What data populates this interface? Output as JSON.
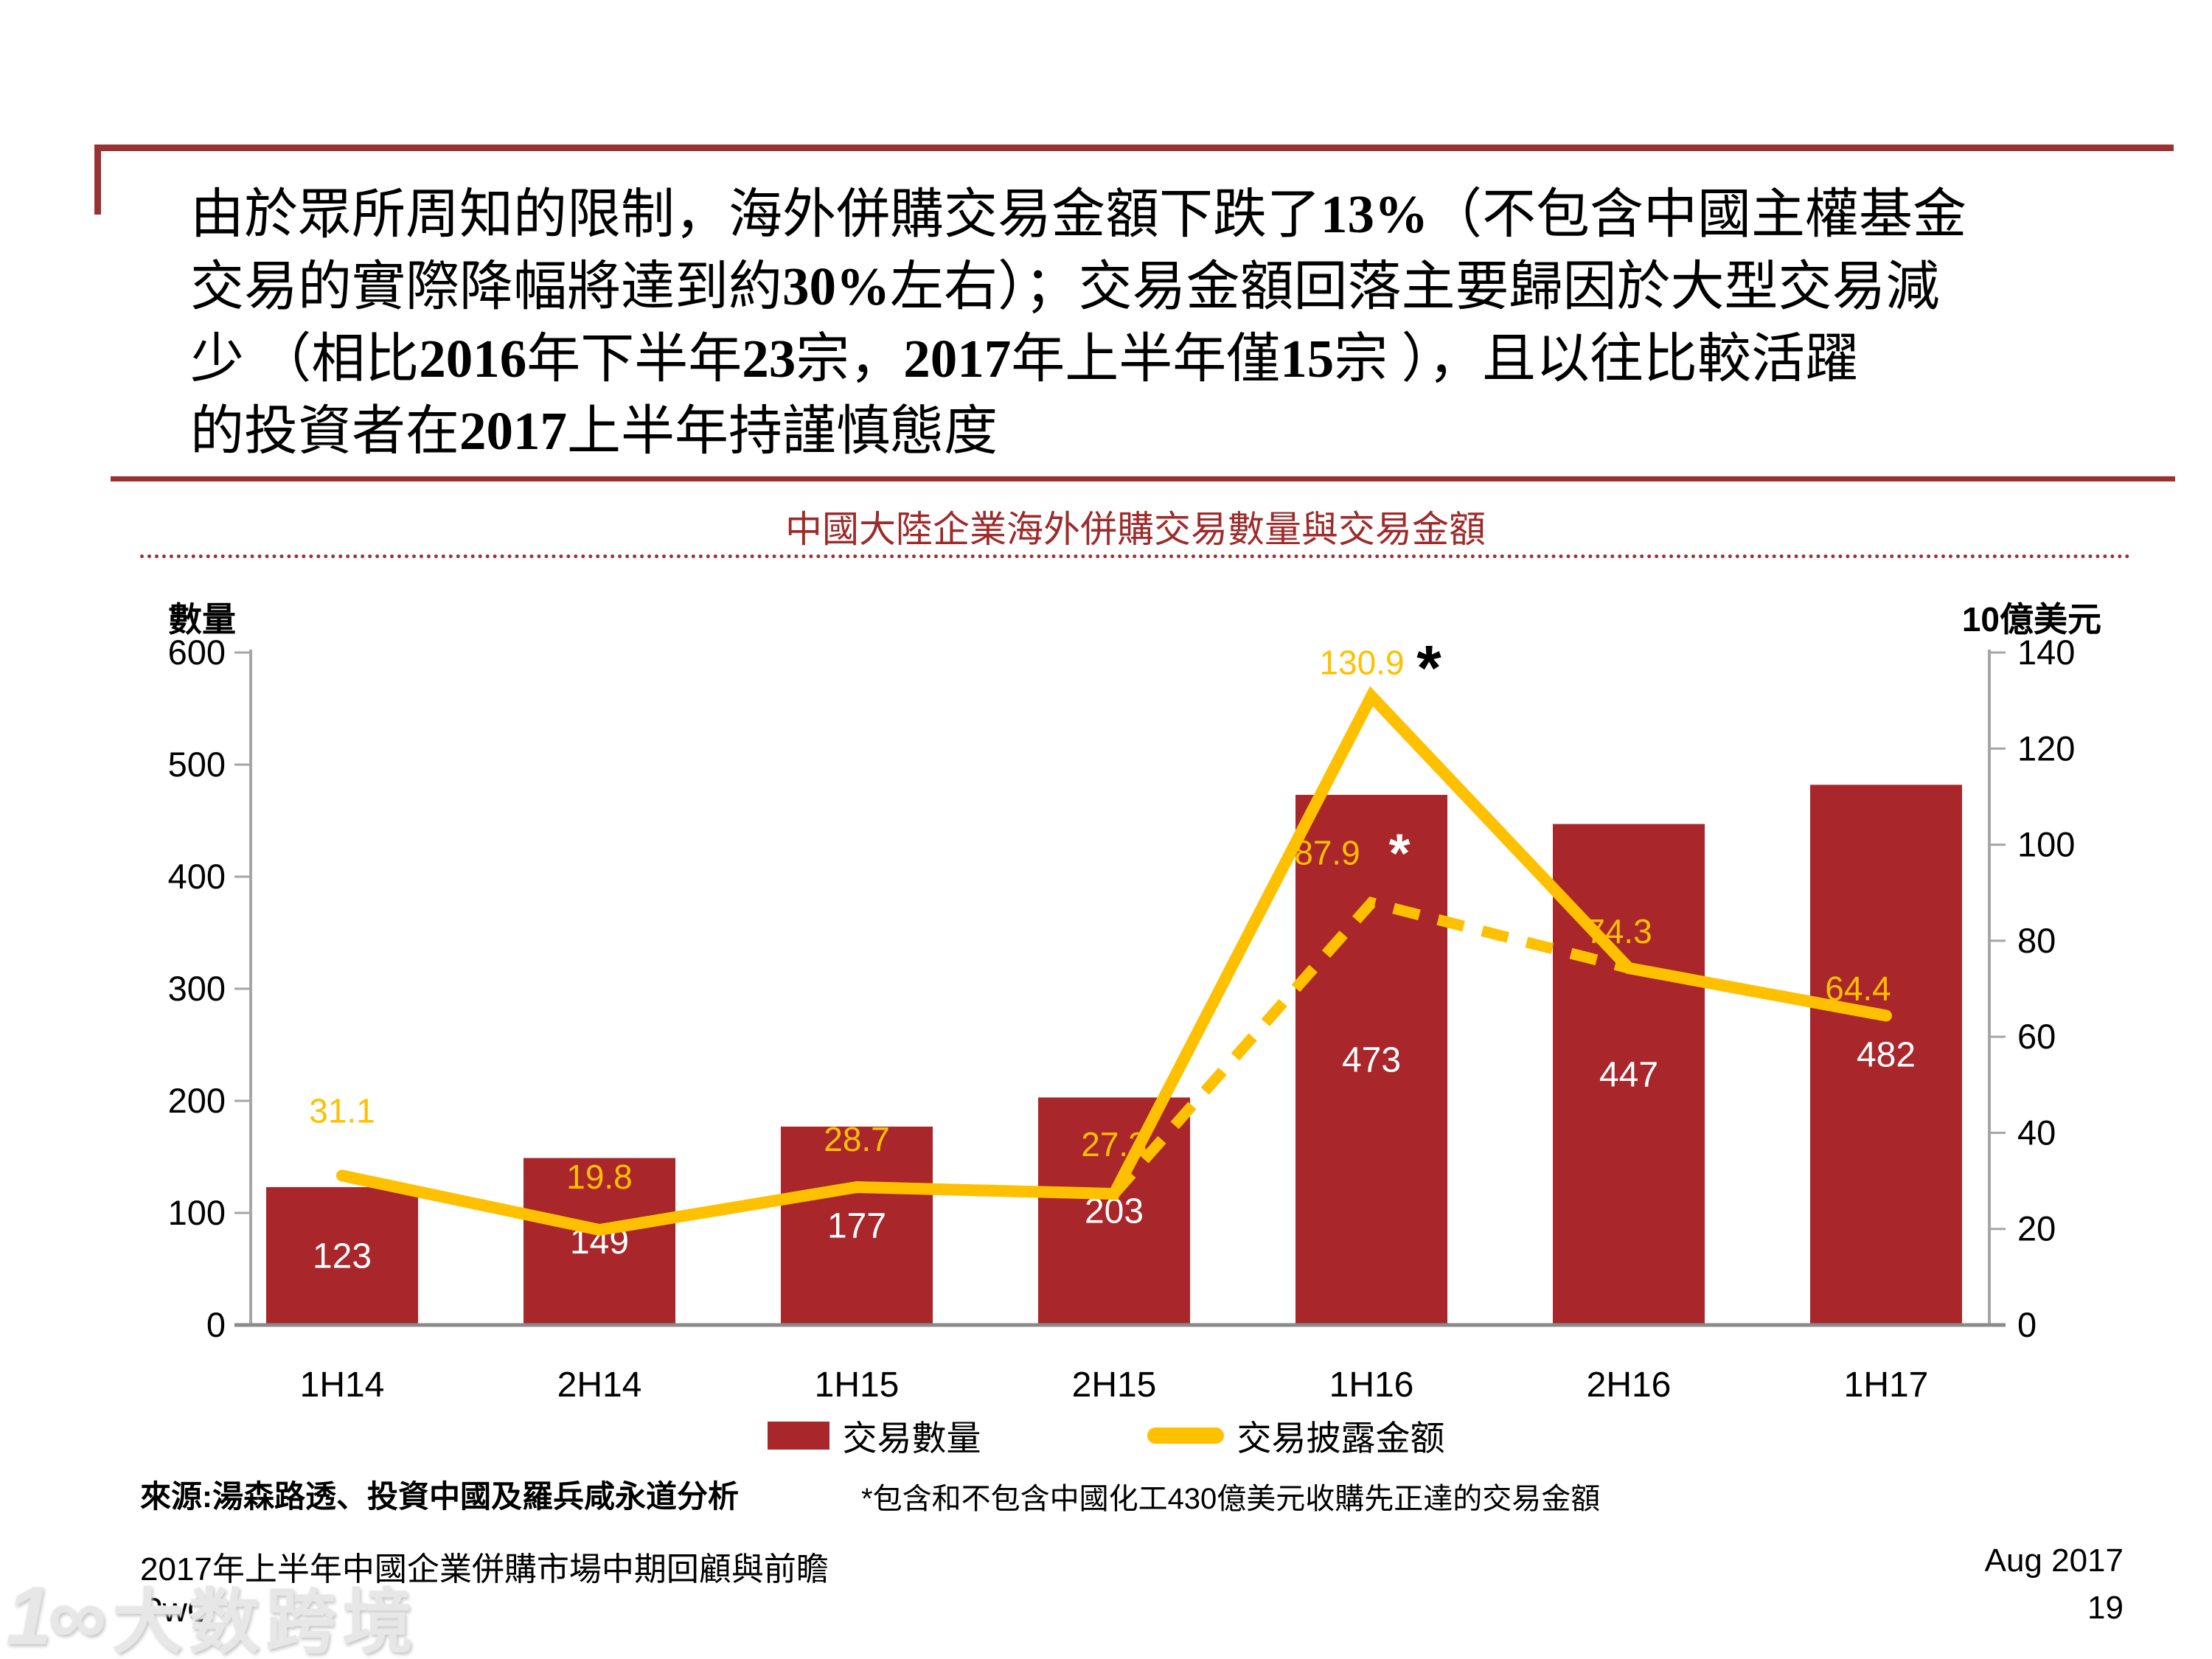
{
  "colors": {
    "maroon": "#993333",
    "title_red": "#9E2B2B",
    "bar_red": "#A9262B",
    "line_yellow": "#FFC000",
    "axis_gray": "#A6A6A6",
    "baseline_gray": "#8A8A8A",
    "bar_label_white": "#FFFFFF"
  },
  "header": {
    "paragraph_lines": [
      [
        {
          "text": "由於眾所周知的限制，海外併購交易金額下跌了"
        },
        {
          "text": "13%",
          "bold": true
        },
        {
          "text": "（不包含中國主權基金"
        }
      ],
      [
        {
          "text": "交易的實際降幅將達到約"
        },
        {
          "text": "30%",
          "bold": true
        },
        {
          "text": "左右）；交易金額回落主要歸因於大型交易減"
        }
      ],
      [
        {
          "text": "少 （相比"
        },
        {
          "text": "2016",
          "bold": true
        },
        {
          "text": "年下半年"
        },
        {
          "text": "23",
          "bold": true
        },
        {
          "text": "宗，"
        },
        {
          "text": "2017",
          "bold": true
        },
        {
          "text": "年上半年僅"
        },
        {
          "text": "15",
          "bold": true
        },
        {
          "text": "宗 ），且以往比較活躍"
        }
      ],
      [
        {
          "text": "的投資者在"
        },
        {
          "text": "2017",
          "bold": true
        },
        {
          "text": "上半年持謹慎態度"
        }
      ]
    ]
  },
  "chart_data": {
    "type": "bar+line",
    "title": "中國大陸企業海外併購交易數量與交易金額",
    "categories": [
      "1H14",
      "2H14",
      "1H15",
      "2H15",
      "1H16",
      "2H16",
      "1H17"
    ],
    "series": [
      {
        "name": "交易數量",
        "type": "bar",
        "axis": "left",
        "values": [
          123,
          149,
          177,
          203,
          473,
          447,
          482
        ],
        "labels": [
          "123",
          "149",
          "177",
          "203",
          "473",
          "447",
          "482"
        ]
      },
      {
        "name": "交易披露金额",
        "type": "line",
        "style": "solid",
        "axis": "right",
        "values": [
          31.1,
          19.8,
          28.7,
          27.3,
          130.9,
          74.3,
          64.4
        ],
        "labels": [
          "31.1",
          "19.8",
          "28.7",
          "27.3",
          "130.9",
          "74.3",
          "64.4"
        ]
      },
      {
        "name": "",
        "type": "line",
        "style": "dashed",
        "axis": "right",
        "points": [
          {
            "category": "2H15",
            "value": 27.3
          },
          {
            "category": "1H16",
            "value": 87.9,
            "label": "87.9"
          },
          {
            "category": "2H16",
            "value": 74.3
          }
        ]
      }
    ],
    "annotations": [
      {
        "symbol": "*",
        "series": "solid",
        "category": "1H16",
        "color": "#000000"
      },
      {
        "symbol": "*",
        "series": "dashed",
        "category": "1H16",
        "color": "#FFFFFF"
      }
    ],
    "left_axis": {
      "label": "數量",
      "min": 0,
      "max": 600,
      "step": 100
    },
    "right_axis": {
      "label": "10億美元",
      "min": 0,
      "max": 140,
      "step": 20
    },
    "grid": false,
    "legend_position": "bottom"
  },
  "footer": {
    "source": "來源:湯森路透、投資中國及羅兵咸永道分析",
    "footnote": "*包含和不包含中國化工430億美元收購先正達的交易金額",
    "report_title": "2017年上半年中國企業併購市場中期回顧與前瞻",
    "brand": "PwC",
    "date": "Aug 2017",
    "page_number": "19"
  },
  "watermark": {
    "logo": "1∞",
    "text": "大数跨境"
  }
}
